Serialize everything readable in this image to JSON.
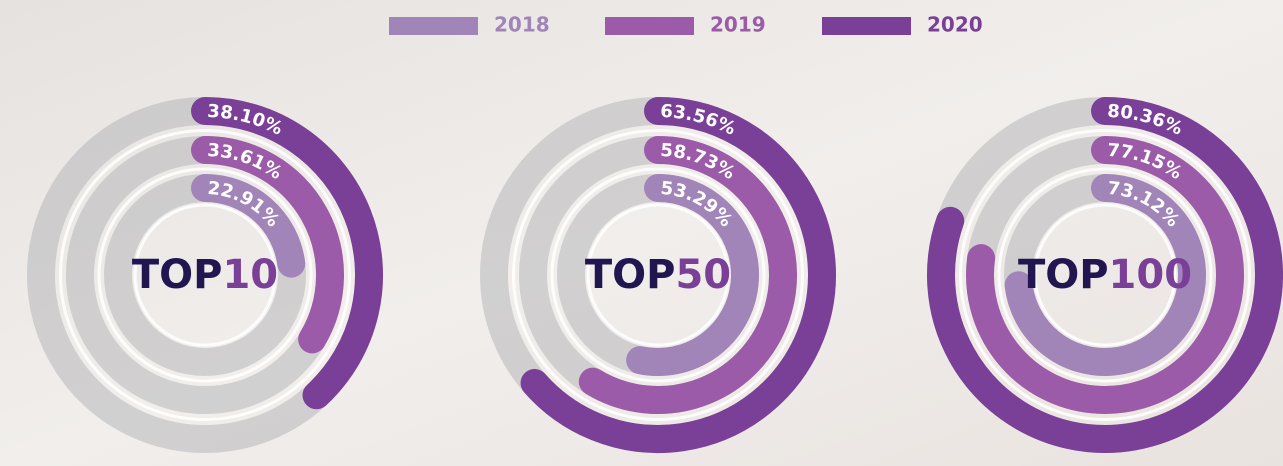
{
  "legend": [
    {
      "name": "2018",
      "color": "#a184b8"
    },
    {
      "name": "2019",
      "color": "#9b5ba8"
    },
    {
      "name": "2020",
      "color": "#7a3f97"
    }
  ],
  "chart_data": [
    {
      "type": "radial_bar",
      "title": [
        "TOP",
        "10"
      ],
      "ylim": [
        0,
        100
      ],
      "values": [
        22.91,
        33.61,
        38.1
      ],
      "value_labels": [
        "22.91%",
        "33.61%",
        "38.10%"
      ]
    },
    {
      "type": "radial_bar",
      "title": [
        "TOP",
        "50"
      ],
      "ylim": [
        0,
        100
      ],
      "values": [
        53.29,
        58.73,
        63.56
      ],
      "value_labels": [
        "53.29%",
        "58.73%",
        "63.56%"
      ]
    },
    {
      "type": "radial_bar",
      "title": [
        "TOP",
        "100"
      ],
      "ylim": [
        0,
        100
      ],
      "values": [
        73.12,
        77.15,
        80.36
      ],
      "value_labels": [
        "73.12%",
        "77.15%",
        "80.36%"
      ]
    }
  ]
}
